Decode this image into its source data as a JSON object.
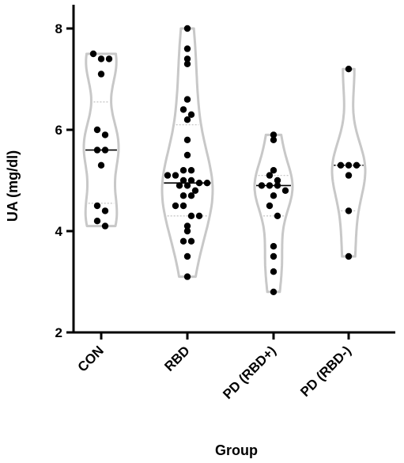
{
  "chart_data": {
    "type": "violin",
    "title": "",
    "xlabel": "Group",
    "ylabel": "UA (mg/dl)",
    "ylim": [
      2,
      8.5
    ],
    "yticks": [
      2,
      4,
      6,
      8
    ],
    "ytick_labels": [
      "2",
      "4",
      "6",
      "8"
    ],
    "grid": false,
    "colors": {
      "violin_outline": "#c8c8c8",
      "points": "#000000",
      "median": "#000000",
      "quartile": "#c8c8c8"
    },
    "categories": [
      "CON",
      "RBD",
      "PD (RBD+)",
      "PD (RBD-)"
    ],
    "groups": [
      {
        "name": "CON",
        "min": 4.1,
        "max": 7.5,
        "median": 5.6,
        "q1": 4.55,
        "q3": 6.55,
        "median_style": "solid",
        "points": [
          7.5,
          7.4,
          7.4,
          7.1,
          6.0,
          5.9,
          5.6,
          5.6,
          5.3,
          4.5,
          4.4,
          4.2,
          4.1
        ]
      },
      {
        "name": "RBD",
        "min": 3.1,
        "max": 8.0,
        "median": 4.95,
        "q1": 4.3,
        "q3": 6.1,
        "median_style": "solid",
        "points": [
          8.0,
          7.6,
          7.4,
          7.3,
          6.6,
          6.4,
          6.3,
          6.2,
          5.8,
          5.5,
          5.2,
          5.2,
          5.1,
          5.1,
          5.0,
          5.0,
          4.95,
          4.95,
          4.9,
          4.9,
          4.8,
          4.7,
          4.7,
          4.5,
          4.5,
          4.3,
          4.3,
          4.1,
          4.0,
          3.8,
          3.8,
          3.5,
          3.1
        ]
      },
      {
        "name": "PD (RBD+)",
        "min": 2.8,
        "max": 5.9,
        "median": 4.9,
        "q1": 4.3,
        "q3": 5.1,
        "median_style": "solid",
        "points": [
          5.9,
          5.8,
          5.2,
          5.1,
          5.0,
          4.9,
          4.9,
          4.9,
          4.8,
          4.7,
          4.5,
          4.3,
          3.7,
          3.5,
          3.2,
          2.8
        ]
      },
      {
        "name": "PD (RBD-)",
        "min": 3.5,
        "max": 7.2,
        "median": 5.3,
        "q1": 4.4,
        "q3": 5.3,
        "median_style": "dotted",
        "points": [
          7.2,
          5.3,
          5.3,
          5.3,
          5.1,
          4.4,
          3.5
        ]
      }
    ]
  }
}
